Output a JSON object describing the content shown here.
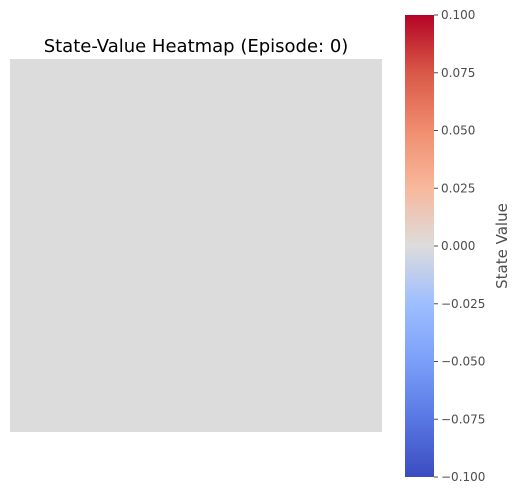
{
  "chart_data": {
    "type": "heatmap",
    "title": "State-Value Heatmap (Episode: 0)",
    "xlabel": "",
    "ylabel": "",
    "grid": false,
    "values": [
      [
        0.0
      ]
    ],
    "colormap": "coolwarm",
    "colorbar": {
      "label": "State Value",
      "range": [
        -0.1,
        0.1
      ],
      "ticks": [
        0.1,
        0.075,
        0.05,
        0.025,
        0.0,
        -0.025,
        -0.05,
        -0.075,
        -0.1
      ],
      "tick_labels": [
        "0.100",
        "0.075",
        "0.050",
        "0.025",
        "0.000",
        "−0.025",
        "−0.050",
        "−0.075",
        "−0.100"
      ],
      "placement": "right"
    }
  }
}
